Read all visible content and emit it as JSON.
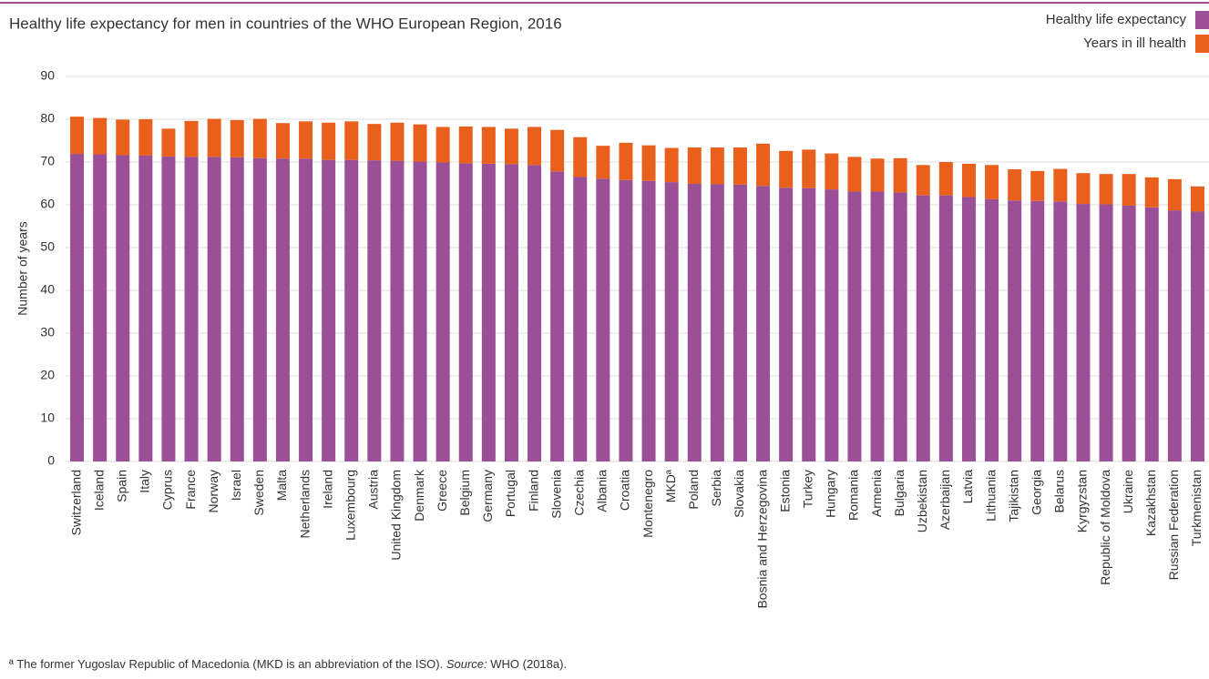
{
  "chart_data": {
    "type": "stacked_bar",
    "title": "Healthy life expectancy for men in countries of the WHO European Region, 2016",
    "y_axis_label": "Number of years",
    "categories": [
      "Switzerland",
      "Iceland",
      "Spain",
      "Italy",
      "Cyprus",
      "France",
      "Norway",
      "Israel",
      "Sweden",
      "Malta",
      "Netherlands",
      "Ireland",
      "Luxembourg",
      "Austria",
      "United Kingdom",
      "Denmark",
      "Greece",
      "Belgium",
      "Germany",
      "Portugal",
      "Finland",
      "Slovenia",
      "Czechia",
      "Albania",
      "Croatia",
      "Montenegro",
      "MKDª",
      "Poland",
      "Serbia",
      "Slovakia",
      "Bosnia and Herzegovina",
      "Estonia",
      "Turkey",
      "Hungary",
      "Romania",
      "Armenia",
      "Bulgaria",
      "Uzbekistan",
      "Azerbaijan",
      "Latvia",
      "Lithuania",
      "Tajikistan",
      "Georgia",
      "Belarus",
      "Kyrgyzstan",
      "Republic of Moldova",
      "Ukraine",
      "Kazakhstan",
      "Russian Federation",
      "Turkmenistan"
    ],
    "series": [
      {
        "name": "Healthy life expectancy",
        "color": "#9b4f96",
        "values": [
          71.9,
          71.8,
          71.6,
          71.5,
          71.3,
          71.2,
          71.2,
          71.1,
          70.9,
          70.8,
          70.8,
          70.5,
          70.5,
          70.4,
          70.3,
          70.1,
          69.9,
          69.7,
          69.6,
          69.5,
          69.3,
          67.8,
          66.5,
          66.1,
          65.8,
          65.6,
          65.3,
          64.9,
          64.8,
          64.7,
          64.4,
          64.0,
          63.9,
          63.6,
          63.1,
          63.1,
          62.9,
          62.2,
          62.2,
          61.8,
          61.3,
          61.0,
          60.9,
          60.8,
          60.2,
          60.1,
          59.8,
          59.4,
          58.7,
          58.4
        ]
      },
      {
        "name": "Years in ill health",
        "color": "#e8601c",
        "values": [
          8.7,
          8.5,
          8.3,
          8.5,
          6.5,
          8.4,
          8.9,
          8.7,
          9.2,
          8.3,
          8.7,
          8.7,
          9.0,
          8.5,
          8.9,
          8.7,
          8.3,
          8.6,
          8.6,
          8.3,
          8.9,
          9.7,
          9.3,
          7.7,
          8.7,
          8.3,
          8.0,
          8.5,
          8.6,
          8.7,
          9.9,
          8.6,
          9.0,
          8.4,
          8.1,
          7.7,
          8.0,
          7.1,
          7.8,
          7.8,
          8.0,
          7.3,
          7.0,
          7.6,
          7.2,
          7.1,
          7.4,
          7.0,
          7.3,
          5.9
        ]
      }
    ],
    "ylim": [
      0,
      90
    ],
    "yticks": [
      0,
      10,
      20,
      30,
      40,
      50,
      60,
      70,
      80,
      90
    ],
    "grid": true,
    "legend": "top-right",
    "footnote": "ª The former Yugoslav Republic of Macedonia (MKD is an abbreviation of the ISO).",
    "source_label": "Source:",
    "source": "WHO (2018a)."
  }
}
